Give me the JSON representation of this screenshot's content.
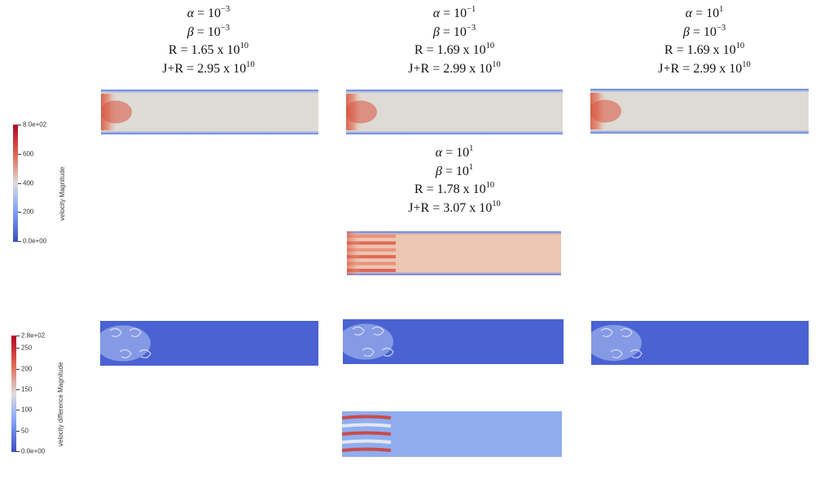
{
  "labels": [
    {
      "alpha_base": "10",
      "alpha_exp": "−3",
      "beta_base": "10",
      "beta_exp": "−3",
      "r_text": "R = 1.65 x 10",
      "r_exp": "10",
      "jr_text": "J+R = 2.95 x 10",
      "jr_exp": "10"
    },
    {
      "alpha_base": "10",
      "alpha_exp": "−1",
      "beta_base": "10",
      "beta_exp": "−3",
      "r_text": "R = 1.69 x 10",
      "r_exp": "10",
      "jr_text": "J+R = 2.99 x 10",
      "jr_exp": "10"
    },
    {
      "alpha_base": "10",
      "alpha_exp": "1",
      "beta_base": "10",
      "beta_exp": "−3",
      "r_text": "R = 1.69 x 10",
      "r_exp": "10",
      "jr_text": "J+R = 2.99 x 10",
      "jr_exp": "10"
    },
    {
      "alpha_base": "10",
      "alpha_exp": "1",
      "beta_base": "10",
      "beta_exp": "1",
      "r_text": "R = 1.78 x 10",
      "r_exp": "10",
      "jr_text": "J+R = 3.07 x 10",
      "jr_exp": "10"
    }
  ],
  "greek": {
    "alpha": "α",
    "beta": "β",
    "eq": " = "
  },
  "colorbars": {
    "velocity": {
      "title": "velocity Magnitude",
      "ticks": [
        {
          "label": "8.0e+02",
          "frac": 0
        },
        {
          "label": "600",
          "frac": 0.25
        },
        {
          "label": "400",
          "frac": 0.5
        },
        {
          "label": "200",
          "frac": 0.75
        },
        {
          "label": "0.0e+00",
          "frac": 1
        }
      ],
      "colors": [
        "#b40426",
        "#e0654f",
        "#dddcdc",
        "#7b9ff9",
        "#3b4cc0"
      ]
    },
    "difference": {
      "title": "velocity difference Magnitude",
      "ticks": [
        {
          "label": "2.8e+02",
          "frac": 0
        },
        {
          "label": "250",
          "frac": 0.107
        },
        {
          "label": "200",
          "frac": 0.286
        },
        {
          "label": "150",
          "frac": 0.464
        },
        {
          "label": "100",
          "frac": 0.643
        },
        {
          "label": "50",
          "frac": 0.821
        },
        {
          "label": "0.0e+00",
          "frac": 1
        }
      ],
      "colors": [
        "#b40426",
        "#e0654f",
        "#dddcdc",
        "#7b9ff9",
        "#3b4cc0"
      ]
    }
  },
  "panels": {
    "velocity": [
      {
        "bg": "#dedad4",
        "inlet": 0.85,
        "jets": "blob"
      },
      {
        "bg": "#dedad4",
        "inlet": 0.85,
        "jets": "blob"
      },
      {
        "bg": "#dedad4",
        "inlet": 0.85,
        "jets": "blob"
      },
      {
        "bg": "#ecc6b1",
        "inlet": 1.0,
        "jets": "stripes"
      }
    ],
    "difference": [
      {
        "bg": "#4a62d2",
        "jets": "swirl"
      },
      {
        "bg": "#4a62d2",
        "jets": "swirl"
      },
      {
        "bg": "#4a62d2",
        "jets": "swirl"
      },
      {
        "bg": "#8fadef",
        "jets": "stripes"
      }
    ]
  }
}
